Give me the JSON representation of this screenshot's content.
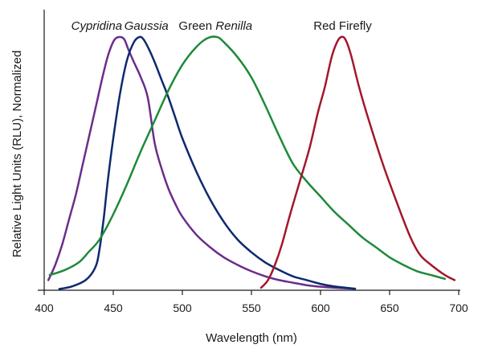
{
  "chart_data": {
    "type": "line",
    "title": "",
    "xlabel": "Wavelength (nm)",
    "ylabel": "Relative Light Units (RLU), Normalized",
    "xlim": [
      400,
      700
    ],
    "ylim": [
      0,
      1
    ],
    "xticks": [
      400,
      450,
      500,
      550,
      600,
      650,
      700
    ],
    "x_tick_labels": [
      "400",
      "450",
      "500",
      "550",
      "600",
      "650",
      "700"
    ],
    "grid": false,
    "legend": "none; series names printed above each curve peak",
    "series": [
      {
        "name": "Cypridina",
        "name_parts": [
          {
            "text": "Cypridina",
            "italic": true
          }
        ],
        "color": "#6b2d8a",
        "x": [
          403,
          408,
          413,
          418,
          423,
          428,
          433,
          438,
          443,
          447,
          451,
          455,
          458,
          461,
          465,
          470,
          475,
          480,
          485,
          490,
          495,
          500,
          510,
          520,
          530,
          540,
          550,
          560,
          570,
          580,
          590,
          600,
          610,
          625
        ],
        "y": [
          0.04,
          0.1,
          0.18,
          0.28,
          0.38,
          0.5,
          0.62,
          0.74,
          0.86,
          0.94,
          0.99,
          1.0,
          0.99,
          0.95,
          0.9,
          0.84,
          0.76,
          0.58,
          0.48,
          0.4,
          0.34,
          0.29,
          0.22,
          0.17,
          0.13,
          0.1,
          0.075,
          0.055,
          0.04,
          0.03,
          0.02,
          0.014,
          0.01,
          0.006
        ]
      },
      {
        "name": "Gaussia",
        "name_parts": [
          {
            "text": "Gaussia",
            "italic": true
          }
        ],
        "color": "#0d2a6e",
        "x": [
          411,
          420,
          430,
          437,
          440,
          443,
          446,
          450,
          455,
          460,
          465,
          469,
          472,
          476,
          480,
          485,
          490,
          495,
          500,
          510,
          520,
          530,
          540,
          550,
          560,
          570,
          580,
          590,
          600,
          610,
          625
        ],
        "y": [
          0.005,
          0.015,
          0.04,
          0.09,
          0.16,
          0.28,
          0.43,
          0.6,
          0.78,
          0.91,
          0.98,
          1.0,
          0.99,
          0.95,
          0.9,
          0.83,
          0.76,
          0.68,
          0.6,
          0.47,
          0.36,
          0.27,
          0.2,
          0.15,
          0.11,
          0.08,
          0.055,
          0.04,
          0.025,
          0.015,
          0.006
        ]
      },
      {
        "name": "Green Renilla",
        "name_parts": [
          {
            "text": "Green ",
            "italic": false
          },
          {
            "text": "Renilla",
            "italic": true
          }
        ],
        "color": "#1e8a3a",
        "x": [
          404,
          415,
          425,
          432,
          440,
          450,
          460,
          470,
          480,
          490,
          500,
          510,
          518,
          525,
          530,
          540,
          550,
          560,
          570,
          580,
          590,
          600,
          610,
          620,
          630,
          640,
          650,
          660,
          670,
          680,
          690
        ],
        "y": [
          0.06,
          0.08,
          0.11,
          0.15,
          0.2,
          0.3,
          0.42,
          0.55,
          0.67,
          0.79,
          0.89,
          0.96,
          0.995,
          1.0,
          0.98,
          0.92,
          0.84,
          0.73,
          0.61,
          0.5,
          0.43,
          0.37,
          0.31,
          0.26,
          0.21,
          0.17,
          0.13,
          0.1,
          0.075,
          0.06,
          0.045
        ]
      },
      {
        "name": "Red Firefly",
        "name_parts": [
          {
            "text": "Red Firefly",
            "italic": false
          }
        ],
        "color": "#a3172c",
        "x": [
          557,
          562,
          567,
          572,
          578,
          585,
          592,
          598,
          603,
          608,
          612,
          615,
          618,
          622,
          628,
          635,
          645,
          655,
          665,
          672,
          680,
          690,
          697
        ],
        "y": [
          0.01,
          0.04,
          0.1,
          0.18,
          0.3,
          0.43,
          0.56,
          0.7,
          0.8,
          0.92,
          0.98,
          1.0,
          0.99,
          0.93,
          0.8,
          0.67,
          0.5,
          0.35,
          0.21,
          0.14,
          0.1,
          0.06,
          0.04
        ]
      }
    ],
    "labels": [
      {
        "series": "Cypridina",
        "x": 438
      },
      {
        "series": "Gaussia",
        "x": 474
      },
      {
        "series": "Green Renilla",
        "x": 524
      },
      {
        "series": "Red Firefly",
        "x": 616
      }
    ]
  }
}
